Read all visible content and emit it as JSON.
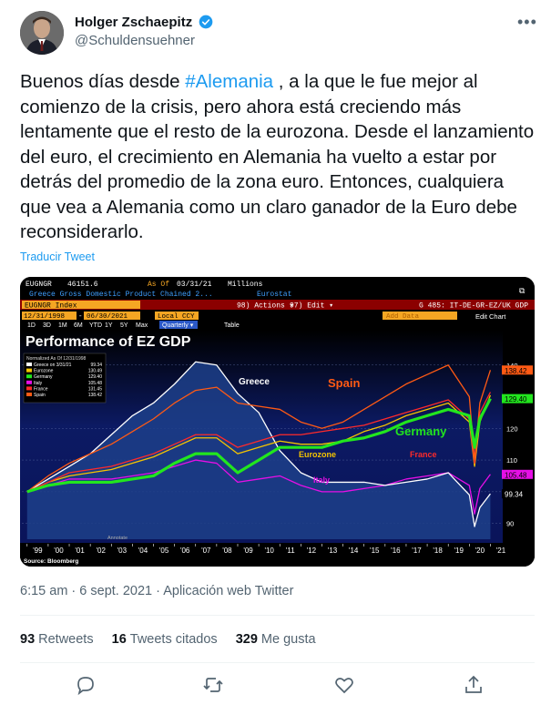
{
  "author": {
    "name": "Holger Zschaepitz",
    "handle": "@Schuldensuehner"
  },
  "tweet": {
    "text_before": "Buenos días desde ",
    "hashtag": "#Alemania",
    "text_after": " , a la que le fue mejor al comienzo de la crisis, pero ahora está creciendo más lentamente que el resto de la eurozona. Desde el lanzamiento del euro, el crecimiento en Alemania ha vuelto a estar por detrás del promedio de la zona euro. Entonces, cualquiera que vea a Alemania como un claro ganador de la Euro debe reconsiderarlo.",
    "translate_label": "Traducir Tweet",
    "time": "6:15 am",
    "date": "6 sept. 2021",
    "source": "Aplicación web Twitter"
  },
  "stats": {
    "retweets_count": "93",
    "retweets_label": "Retweets",
    "quotes_count": "16",
    "quotes_label": "Tweets citados",
    "likes_count": "329",
    "likes_label": "Me gusta"
  },
  "bloomberg": {
    "ticker": "EUGNGR",
    "value": "46151.6",
    "asof_label": "As Of",
    "asof_date": "03/31/21",
    "units": "Millions",
    "series_desc": "Greece Gross Domestic Product Chained 2...",
    "source": "Eurostat",
    "index_label": "EUGNGR Index",
    "actions_label": "98) Actions ▾",
    "edit_label": "97) Edit ▾",
    "chart_code": "G 485: IT-DE-GR-EZ/UK GDP",
    "date_from": "12/31/1998",
    "date_to": "06/30/2021",
    "currency": "Local CCY",
    "periods": [
      "1D",
      "3D",
      "1M",
      "6M",
      "YTD",
      "1Y",
      "5Y",
      "Max"
    ],
    "frequency": "Quarterly ▾",
    "table_label": "Table",
    "add_data": "Add Data",
    "edit_chart": "Edit Chart",
    "source_footer": "Source: Bloomberg",
    "annotate": "Annotate"
  },
  "chart_data": {
    "type": "line",
    "title": "Performance of EZ GDP",
    "legend_header": "Normalized As Of 12/31/1998",
    "legend": [
      {
        "name": "Greece on 3/31/21",
        "last": "99.34",
        "color": "#ffffff"
      },
      {
        "name": "Eurozone",
        "last": "130.49",
        "color": "#f5c400"
      },
      {
        "name": "Germany",
        "last": "129.40",
        "color": "#22e61e"
      },
      {
        "name": "Italy",
        "last": "105.48",
        "color": "#e60fe6"
      },
      {
        "name": "France",
        "last": "131.45",
        "color": "#ff2a2a"
      },
      {
        "name": "Spain",
        "last": "138.42",
        "color": "#ff5a14"
      }
    ],
    "annotations": [
      {
        "text": "Greece",
        "color": "#ffffff"
      },
      {
        "text": "Spain",
        "color": "#ff5a14"
      },
      {
        "text": "Germany",
        "color": "#22e61e"
      },
      {
        "text": "Eurozone",
        "color": "#f5c400"
      },
      {
        "text": "France",
        "color": "#ff2a2a"
      },
      {
        "text": "Italy",
        "color": "#e60fe6"
      }
    ],
    "x_labels": [
      "'99",
      "'00",
      "'01",
      "'02",
      "'03",
      "'04",
      "'05",
      "'06",
      "'07",
      "'08",
      "'09",
      "'10",
      "'11",
      "'12",
      "'13",
      "'14",
      "'15",
      "'16",
      "'17",
      "'18",
      "'19",
      "'20",
      "'21"
    ],
    "y_ticks": [
      90,
      100,
      110,
      120,
      140
    ],
    "ylim": [
      85,
      150
    ],
    "last_values": [
      {
        "value": "138.42",
        "color": "#ff5a14"
      },
      {
        "value": "129.40",
        "color": "#22e61e"
      },
      {
        "value": "105.48",
        "color": "#e60fe6"
      },
      {
        "value": "99.34",
        "color": "#ffffff"
      }
    ],
    "x": [
      1999,
      2000,
      2001,
      2002,
      2003,
      2004,
      2005,
      2006,
      2007,
      2008,
      2009,
      2010,
      2011,
      2012,
      2013,
      2014,
      2015,
      2016,
      2017,
      2018,
      2019,
      2020,
      2020.25,
      2020.5,
      2021
    ],
    "series": [
      {
        "name": "Greece",
        "color": "#ffffff",
        "values": [
          100,
          104,
          108,
          112,
          118,
          124,
          128,
          134,
          141,
          140,
          131,
          125,
          113,
          106,
          103,
          103,
          103,
          102,
          103,
          104,
          106,
          99,
          89,
          95,
          99.34
        ]
      },
      {
        "name": "Spain",
        "color": "#ff5a14",
        "values": [
          100,
          105,
          109,
          112,
          115,
          119,
          123,
          128,
          132,
          133,
          128,
          127,
          126,
          122,
          120,
          122,
          126,
          130,
          134,
          137,
          140,
          130,
          110,
          128,
          138.42
        ]
      },
      {
        "name": "Eurozone",
        "color": "#f5c400",
        "values": [
          100,
          103,
          105,
          106,
          107,
          109,
          111,
          114,
          117,
          117,
          112,
          114,
          116,
          115,
          115,
          116,
          119,
          121,
          124,
          126,
          128,
          122,
          108,
          122,
          130.49
        ]
      },
      {
        "name": "Germany",
        "color": "#22e61e",
        "values": [
          100,
          102,
          103,
          103,
          103,
          104,
          105,
          109,
          112,
          112,
          106,
          110,
          114,
          114,
          114,
          116,
          117,
          119,
          122,
          124,
          126,
          124,
          114,
          123,
          129.4
        ]
      },
      {
        "name": "France",
        "color": "#ff2a2a",
        "values": [
          100,
          103,
          106,
          107,
          108,
          110,
          112,
          115,
          118,
          118,
          114,
          116,
          118,
          118,
          119,
          120,
          121,
          123,
          125,
          127,
          129,
          123,
          109,
          125,
          131.45
        ]
      },
      {
        "name": "Italy",
        "color": "#e60fe6",
        "values": [
          100,
          102,
          104,
          104,
          104,
          105,
          106,
          108,
          110,
          109,
          103,
          104,
          105,
          102,
          100,
          100,
          101,
          102,
          104,
          105,
          106,
          102,
          93,
          101,
          105.48
        ]
      }
    ]
  }
}
